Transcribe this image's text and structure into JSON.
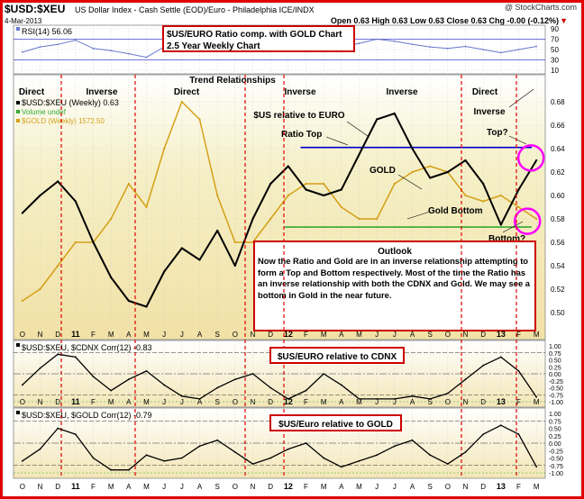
{
  "header": {
    "symbol": "$USD:$XEU",
    "description": "US Dollar Index - Cash Settle (EOD)/Euro - Philadelphia  ICE/INDX",
    "watermark": "@ StockCharts.com",
    "date": "4-Mar-2013",
    "ohlc": "Open 0.63  High 0.63  Low 0.63  Close 0.63  Chg -0.00 (-0.12%)",
    "chg_arrow": "▼"
  },
  "annotations": {
    "title_box_line1": "$US/EURO Ratio comp. with GOLD Chart",
    "title_box_line2": "2.5 Year Weekly Chart",
    "trend_relationships": "Trend Relationships",
    "relationships": [
      "Direct",
      "Inverse",
      "Direct",
      "Inverse",
      "Inverse",
      "Direct"
    ],
    "inverse_right": "Inverse",
    "us_relative": "$US relative to EURO",
    "ratio_top": "Ratio Top",
    "gold": "GOLD",
    "gold_bottom": "Gold Bottom",
    "top_q": "Top?",
    "bottom_q": "Bottom?",
    "outlook_title": "Outlook",
    "outlook_text": "Now the Ratio and Gold are in an inverse relationship attempting to form a Top and Bottom respectively. Most of the time the Ratio has an inverse relationship with both the CDNX and Gold. We may see a bottom in Gold in the near future.",
    "cdnx_box": "$US/EURO relative to CDNX",
    "gold_box": "$US/Euro relative to GOLD"
  },
  "rsi": {
    "label": "RSI(14) 56.06",
    "ticks": [
      "90",
      "70",
      "50",
      "30",
      "10"
    ]
  },
  "legend": {
    "ratio": "$USD:$XEU (Weekly) 0.63",
    "volume": "Volume undef",
    "gold": "$GOLD (Weekly) 1572.50"
  },
  "panel2": {
    "label": "$USD:$XEU, $CDNX Corr(12) -0.83"
  },
  "panel3": {
    "label": "$USD:$XEU, $GOLD Corr(12) -0.79"
  },
  "x_axis": [
    "O",
    "N",
    "D",
    "11",
    "F",
    "M",
    "A",
    "M",
    "J",
    "J",
    "A",
    "S",
    "O",
    "N",
    "D",
    "12",
    "F",
    "M",
    "A",
    "M",
    "J",
    "J",
    "A",
    "S",
    "O",
    "N",
    "D",
    "13",
    "F",
    "M"
  ],
  "colors": {
    "ratio": "#000000",
    "gold": "#d4a017",
    "top_line": "#0000cc",
    "bottom_line": "#33aa33",
    "circle": "#ff00ff",
    "annot_border": "#cc0000"
  },
  "chart_data": [
    {
      "type": "line",
      "title": "RSI(14) 56.06",
      "ylim": [
        10,
        90
      ],
      "y_ticks": [
        90,
        70,
        50,
        30,
        10
      ],
      "x": [
        "O",
        "N",
        "D",
        "11",
        "F",
        "M",
        "A",
        "M",
        "J",
        "J",
        "A",
        "S",
        "O",
        "N",
        "D",
        "12",
        "F",
        "M",
        "A",
        "M",
        "J",
        "J",
        "A",
        "S",
        "O",
        "N",
        "D",
        "13",
        "F",
        "M"
      ],
      "series": [
        {
          "name": "RSI(14)",
          "values": [
            45,
            55,
            60,
            68,
            52,
            48,
            42,
            35,
            55,
            60,
            58,
            62,
            48,
            55,
            62,
            65,
            58,
            52,
            55,
            62,
            70,
            66,
            60,
            55,
            52,
            56,
            50,
            44,
            50,
            56
          ]
        }
      ]
    },
    {
      "type": "line",
      "title": "$USD:$XEU (Weekly) 0.63",
      "ylim": [
        0.48,
        0.7
      ],
      "y_ticks": [
        0.5,
        0.52,
        0.54,
        0.56,
        0.58,
        0.6,
        0.62,
        0.64,
        0.66,
        0.68
      ],
      "x": [
        "O",
        "N",
        "D",
        "11",
        "F",
        "M",
        "A",
        "M",
        "J",
        "J",
        "A",
        "S",
        "O",
        "N",
        "D",
        "12",
        "F",
        "M",
        "A",
        "M",
        "J",
        "J",
        "A",
        "S",
        "O",
        "N",
        "D",
        "13",
        "F",
        "M"
      ],
      "series": [
        {
          "name": "$USD:$XEU (Weekly) 0.63",
          "values": [
            0.585,
            0.6,
            0.612,
            0.595,
            0.56,
            0.53,
            0.51,
            0.505,
            0.535,
            0.555,
            0.545,
            0.57,
            0.54,
            0.58,
            0.61,
            0.625,
            0.605,
            0.6,
            0.605,
            0.635,
            0.665,
            0.67,
            0.64,
            0.615,
            0.62,
            0.63,
            0.61,
            0.575,
            0.605,
            0.63
          ]
        },
        {
          "name": "$GOLD (Weekly) 1572.50",
          "values": [
            0.51,
            0.52,
            0.54,
            0.56,
            0.56,
            0.58,
            0.61,
            0.59,
            0.64,
            0.68,
            0.665,
            0.6,
            0.56,
            0.56,
            0.58,
            0.6,
            0.61,
            0.61,
            0.59,
            0.58,
            0.58,
            0.61,
            0.62,
            0.625,
            0.62,
            0.6,
            0.595,
            0.6,
            0.59,
            0.58
          ]
        }
      ],
      "reference_lines": [
        {
          "label": "Ratio Top",
          "y": 0.641
        },
        {
          "label": "Gold Bottom",
          "y": 0.573
        }
      ]
    },
    {
      "type": "line",
      "title": "$USD:$XEU, $CDNX Corr(12) -0.83",
      "ylim": [
        -1.0,
        1.0
      ],
      "y_ticks": [
        1.0,
        0.75,
        0.5,
        0.25,
        0.0,
        -0.25,
        -0.5,
        -0.75,
        -1.0
      ],
      "x": [
        "O",
        "N",
        "D",
        "11",
        "F",
        "M",
        "A",
        "M",
        "J",
        "J",
        "A",
        "S",
        "O",
        "N",
        "D",
        "12",
        "F",
        "M",
        "A",
        "M",
        "J",
        "J",
        "A",
        "S",
        "O",
        "N",
        "D",
        "13",
        "F",
        "M"
      ],
      "series": [
        {
          "name": "Corr(12)",
          "values": [
            -0.4,
            0.2,
            0.7,
            0.6,
            -0.1,
            -0.6,
            -0.2,
            0.1,
            -0.4,
            -0.8,
            -0.9,
            -0.5,
            -0.2,
            0.0,
            -0.5,
            -0.9,
            -0.6,
            0.0,
            -0.4,
            -0.9,
            -0.9,
            -0.9,
            -0.8,
            -0.9,
            -0.7,
            -0.2,
            0.3,
            0.6,
            0.1,
            -0.83
          ]
        }
      ]
    },
    {
      "type": "line",
      "title": "$USD:$XEU, $GOLD Corr(12) -0.79",
      "ylim": [
        -1.0,
        1.0
      ],
      "y_ticks": [
        1.0,
        0.75,
        0.5,
        0.25,
        0.0,
        -0.25,
        -0.5,
        -0.75,
        -1.0
      ],
      "x": [
        "O",
        "N",
        "D",
        "11",
        "F",
        "M",
        "A",
        "M",
        "J",
        "J",
        "A",
        "S",
        "O",
        "N",
        "D",
        "12",
        "F",
        "M",
        "A",
        "M",
        "J",
        "J",
        "A",
        "S",
        "O",
        "N",
        "D",
        "13",
        "F",
        "M"
      ],
      "series": [
        {
          "name": "Corr(12)",
          "values": [
            -0.6,
            -0.2,
            0.5,
            0.3,
            -0.5,
            -0.9,
            -0.9,
            -0.4,
            -0.6,
            -0.5,
            -0.1,
            0.1,
            -0.3,
            -0.7,
            -0.5,
            -0.2,
            0.0,
            -0.5,
            -0.8,
            -0.6,
            -0.4,
            -0.1,
            0.1,
            -0.4,
            -0.7,
            -0.3,
            0.3,
            0.6,
            0.3,
            -0.79
          ]
        }
      ]
    }
  ]
}
